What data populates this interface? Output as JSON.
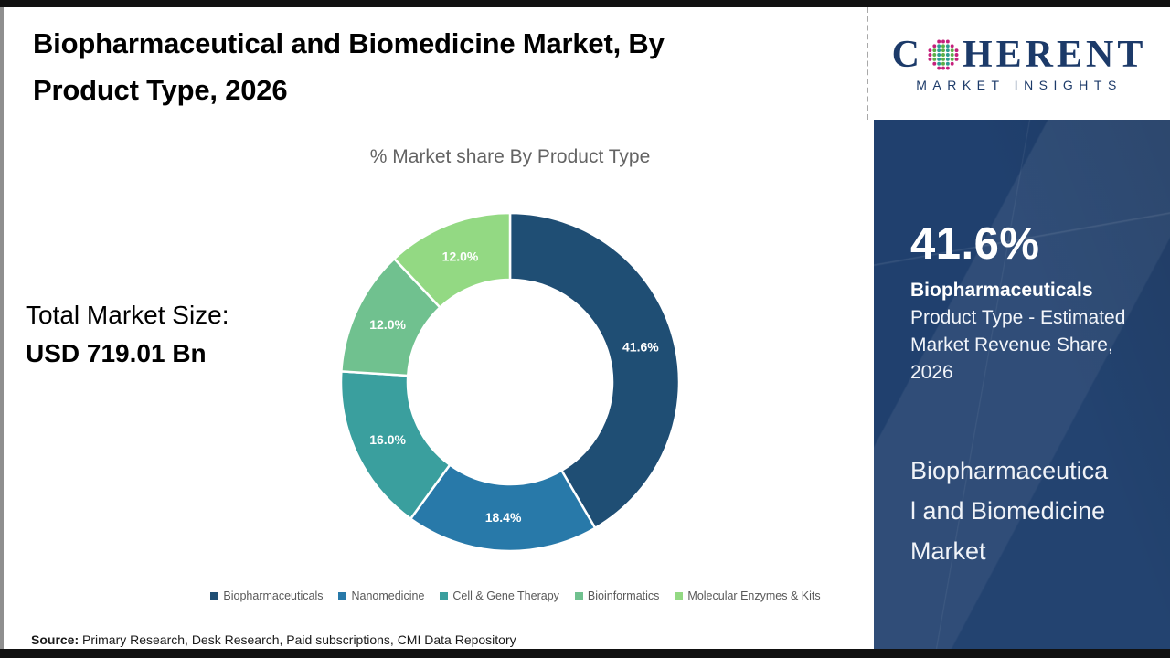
{
  "header": {
    "title": "Biopharmaceutical and Biomedicine Market, By Product Type, 2026"
  },
  "logo": {
    "word_start": "C",
    "word_end": "HERENT",
    "tagline": "MARKET INSIGHTS",
    "brand_color": "#1c3a69",
    "globe_dot_colors": {
      "outer": "#c5207c",
      "even_col": "#5bae47",
      "odd_col": "#2c9c92"
    }
  },
  "chart_data": {
    "type": "pie",
    "donut": true,
    "title": "% Market share By Product Type",
    "start_angle_deg": 0,
    "direction": "clockwise",
    "categories": [
      "Biopharmaceuticals",
      "Nanomedicine",
      "Cell & Gene Therapy",
      "Bioinformatics",
      "Molecular Enzymes & Kits"
    ],
    "values": [
      41.6,
      18.4,
      16.0,
      12.0,
      12.0
    ],
    "labels": [
      "41.6%",
      "18.4%",
      "16.0%",
      "12.0%",
      "12.0%"
    ],
    "colors": [
      "#1f4e74",
      "#2879a9",
      "#3a9f9e",
      "#70c18f",
      "#93d983"
    ],
    "label_color": "#ffffff",
    "legend_position": "bottom",
    "legend_text_color": "#595959",
    "geometry": {
      "outer_radius": 185,
      "inner_radius": 112,
      "label_radius": 148,
      "size": 380
    }
  },
  "totals": {
    "label": "Total Market Size:",
    "value": "USD 719.01 Bn"
  },
  "source": {
    "prefix": "Source:",
    "text": " Primary Research, Desk Research, Paid subscriptions, CMI Data Repository"
  },
  "sidebar": {
    "background_color": "#20406e",
    "stat_value": "41.6%",
    "stat_category": "Biopharmaceuticals",
    "stat_description": "Product Type - Estimated Market Revenue Share, 2026",
    "market_name": "Biopharmaceutical and Biomedicine Market",
    "market_name_lines": [
      "Biopharmaceutica",
      "l and Biomedicine",
      "Market"
    ]
  }
}
